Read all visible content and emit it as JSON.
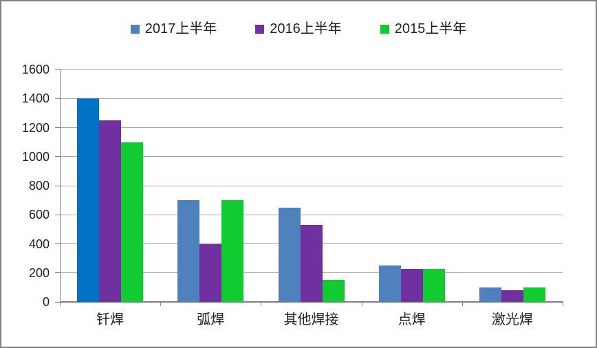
{
  "chart_data": {
    "type": "bar",
    "title": "",
    "categories": [
      "钎焊",
      "弧焊",
      "其他焊接",
      "点焊",
      "激光焊"
    ],
    "series": [
      {
        "name": "2017上半年",
        "color": "#4F81BD",
        "values": [
          1400,
          700,
          650,
          250,
          100
        ],
        "point_colors": {
          "0": "#0072C6"
        }
      },
      {
        "name": "2016上半年",
        "color": "#7030A0",
        "values": [
          1250,
          400,
          530,
          225,
          80
        ]
      },
      {
        "name": "2015上半年",
        "color": "#12CB31",
        "values": [
          1100,
          700,
          150,
          225,
          100
        ]
      }
    ],
    "xlabel": "",
    "ylabel": "",
    "ylim": [
      0,
      1600
    ],
    "ytick_step": 200,
    "yticks": [
      0,
      200,
      400,
      600,
      800,
      1000,
      1200,
      1400,
      1600
    ],
    "grid": true,
    "legend_position": "top",
    "colors": {
      "grid_line": "#A6A6A6",
      "axis_line": "#808080",
      "canvas_border": "#808080",
      "text": "#1f1f1f",
      "background": "#ffffff",
      "highlight_first_bar": "#0072C6"
    }
  }
}
